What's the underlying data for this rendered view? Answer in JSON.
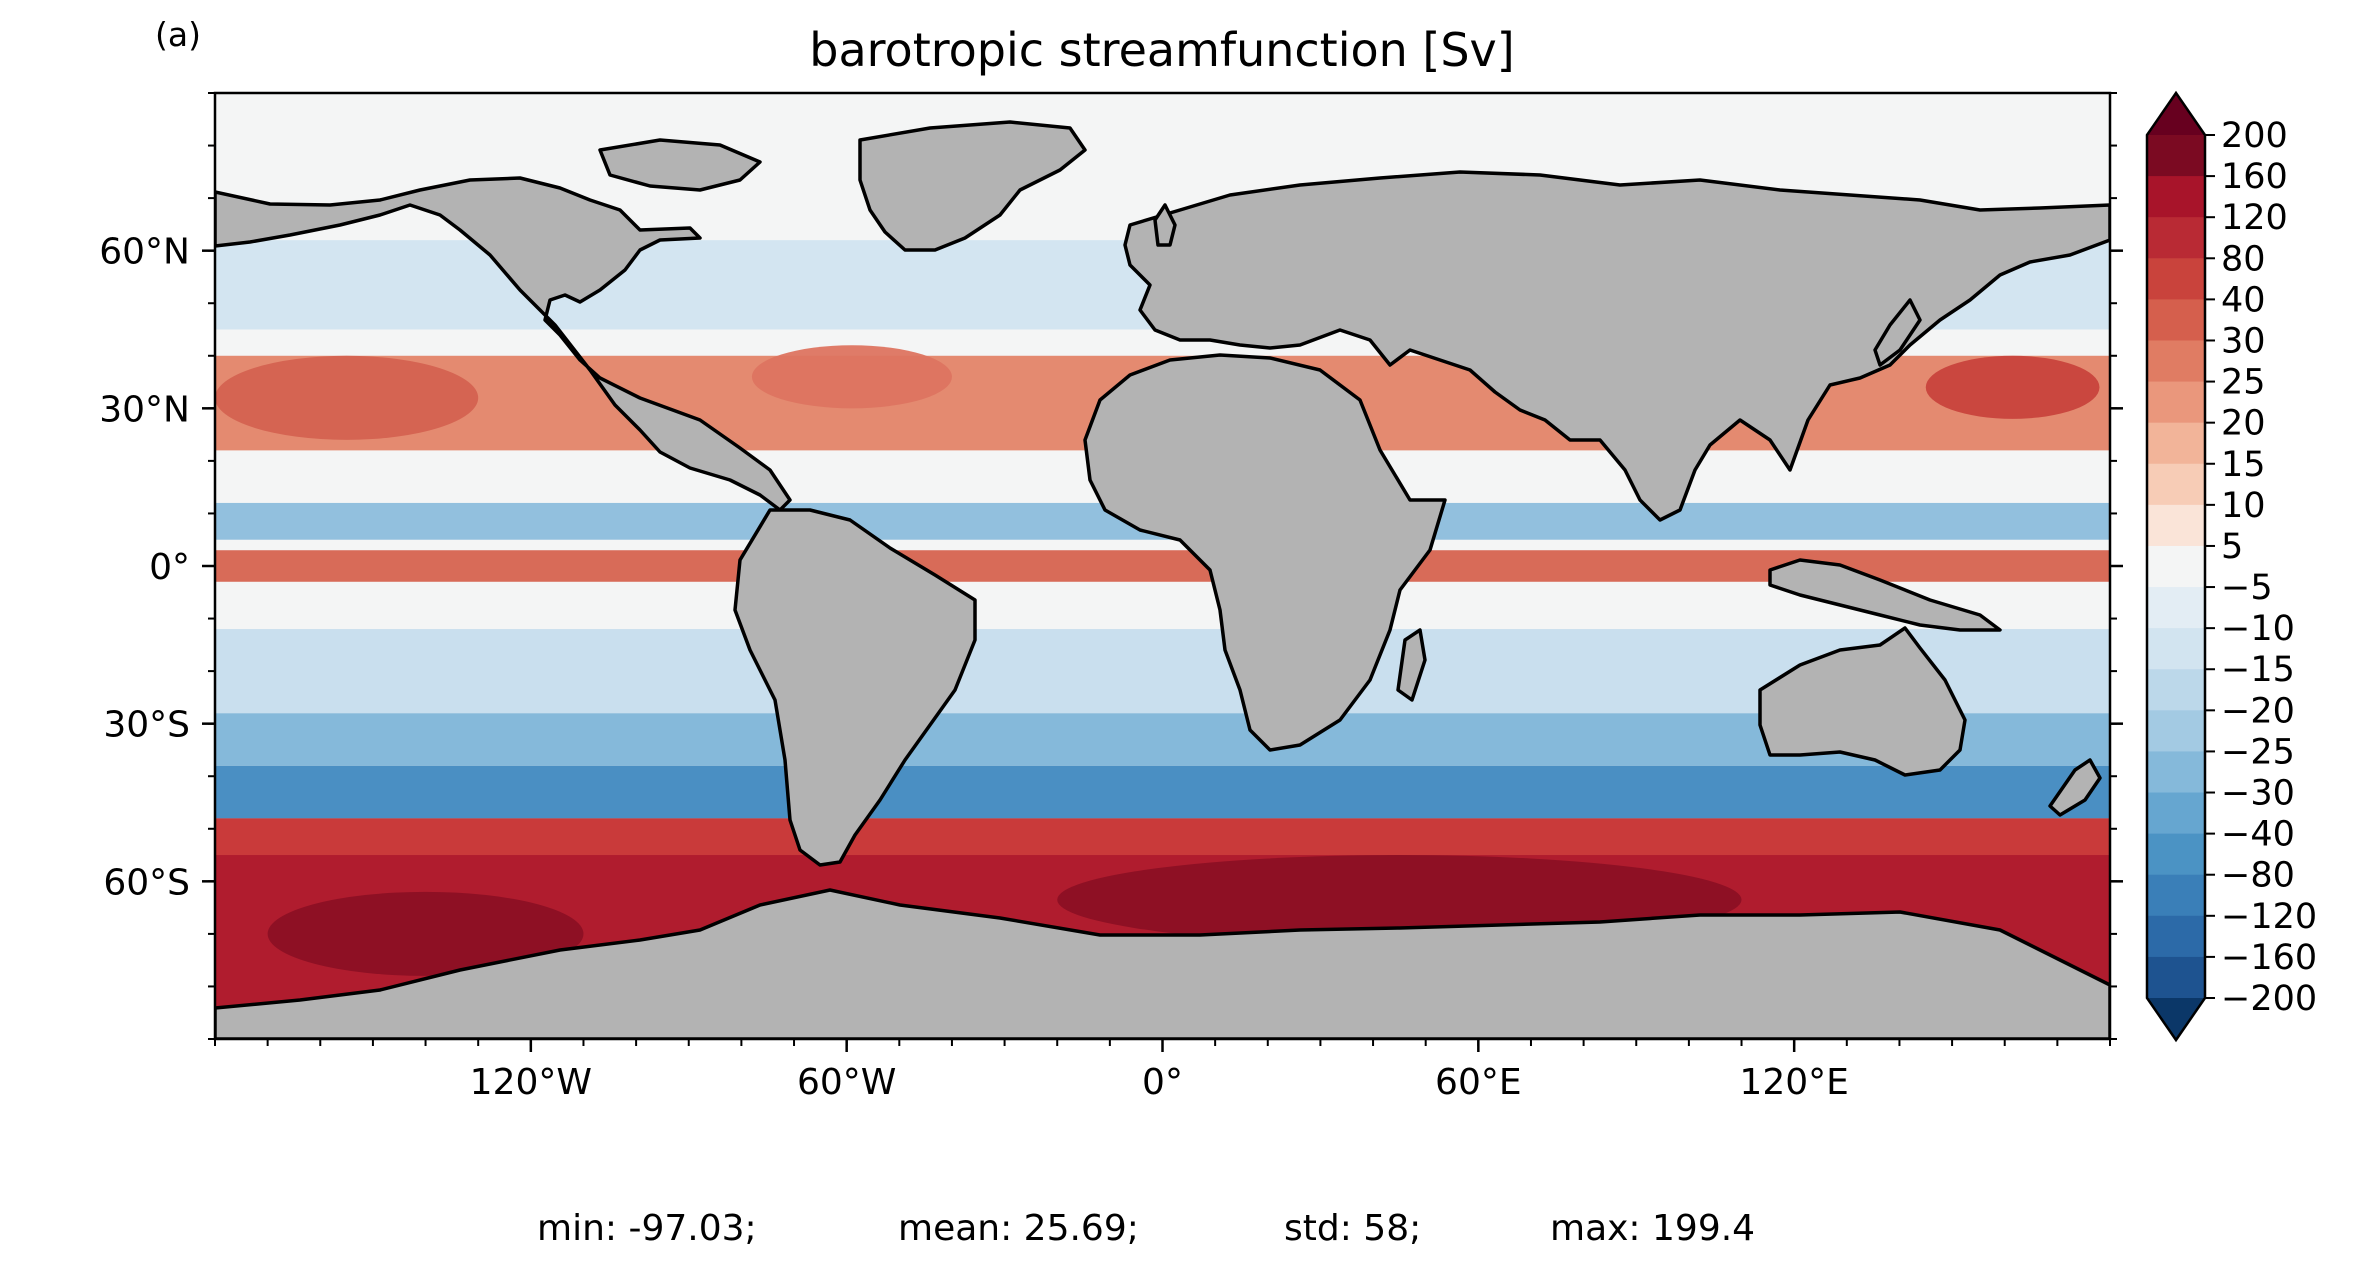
{
  "panel_label": "(a)",
  "title": "barotropic streamfunction [Sv]",
  "map": {
    "projection": "PlateCarree",
    "extent": {
      "lon": [
        -180,
        180
      ],
      "lat": [
        -90,
        90
      ]
    },
    "land_color": "#b3b3b3",
    "coastline_color": "#000000"
  },
  "x_ticks": [
    {
      "lon": -120,
      "label": "120°W"
    },
    {
      "lon": -60,
      "label": "60°W"
    },
    {
      "lon": 0,
      "label": "0°"
    },
    {
      "lon": 60,
      "label": "60°E"
    },
    {
      "lon": 120,
      "label": "120°E"
    }
  ],
  "y_ticks": [
    {
      "lat": 60,
      "label": "60°N"
    },
    {
      "lat": 30,
      "label": "30°N"
    },
    {
      "lat": 0,
      "label": "0°"
    },
    {
      "lat": -30,
      "label": "30°S"
    },
    {
      "lat": -60,
      "label": "60°S"
    }
  ],
  "colorbar": {
    "extend": "both",
    "levels": [
      "200",
      "160",
      "120",
      "80",
      "40",
      "30",
      "25",
      "20",
      "15",
      "10",
      "5",
      "−5",
      "−10",
      "−15",
      "−20",
      "−25",
      "−30",
      "−40",
      "−80",
      "−120",
      "−160",
      "−200"
    ],
    "colors": [
      "#7b0a22",
      "#a8142a",
      "#b92a34",
      "#c9433c",
      "#d55f4d",
      "#e07c63",
      "#ea977c",
      "#f2b499",
      "#f7ccb6",
      "#fae4d8",
      "#f4f5f5",
      "#e3edf4",
      "#d2e4f0",
      "#bcd8ea",
      "#a3cae3",
      "#85b9da",
      "#66a6d0",
      "#4b93c4",
      "#3a7fb8",
      "#2c6aa8",
      "#1e5390"
    ],
    "over_color": "#67001f",
    "under_color": "#0b3768"
  },
  "stats": {
    "min": "min: -97.03;",
    "mean": "mean: 25.69;",
    "std": "std: 58;",
    "max": "max: 199.4"
  },
  "features": {
    "bands": [
      {
        "lat": [
          -90,
          -48
        ],
        "value": "160",
        "color": "#b01c2e"
      },
      {
        "lat": [
          -55,
          -48
        ],
        "value": "80",
        "color": "#c93a3a"
      },
      {
        "lat": [
          -48,
          -38
        ],
        "value": "−30",
        "color": "#4a8fc3"
      },
      {
        "lat": [
          -38,
          -28
        ],
        "value": "−20",
        "color": "#85b9da"
      },
      {
        "lat": [
          -28,
          -12
        ],
        "value": "−10",
        "color": "#c9dfee"
      },
      {
        "lat": [
          -3,
          3
        ],
        "value": "40",
        "color": "#d86b58"
      },
      {
        "lat": [
          5,
          12
        ],
        "value": "−20",
        "color": "#92c0de"
      },
      {
        "lat": [
          22,
          40
        ],
        "value": "30",
        "color": "#e48a70"
      },
      {
        "lat": [
          45,
          62
        ],
        "value": "−10",
        "color": "#d3e5f1"
      }
    ],
    "hotspots": [
      {
        "lon": [
          -170,
          -110
        ],
        "lat": [
          -78,
          -62
        ],
        "value": "200",
        "color": "#8c1024"
      },
      {
        "lon": [
          -20,
          110
        ],
        "lat": [
          -72,
          -55
        ],
        "value": "200",
        "color": "#8c1024"
      },
      {
        "lon": [
          145,
          178
        ],
        "lat": [
          28,
          40
        ],
        "value": "80",
        "color": "#c8433c"
      },
      {
        "lon": [
          -180,
          -130
        ],
        "lat": [
          24,
          40
        ],
        "value": "40",
        "color": "#d46250"
      },
      {
        "lon": [
          -78,
          -40
        ],
        "lat": [
          30,
          42
        ],
        "value": "40",
        "color": "#dd7460"
      }
    ]
  }
}
